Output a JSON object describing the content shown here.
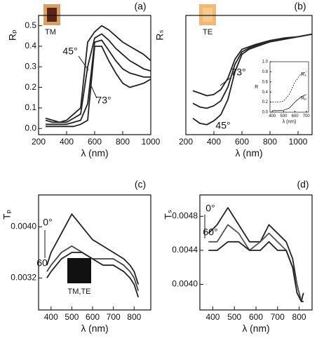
{
  "chart_data": [
    {
      "type": "line",
      "ylabel": "Rₚ",
      "xlabel": "λ (nm)",
      "annotations": [
        "(a)",
        "TM",
        "45°",
        "73°"
      ],
      "xlim": [
        200,
        1000
      ],
      "xticks": [
        200,
        400,
        600,
        800,
        1000
      ],
      "ylim": [
        -0.03,
        0.55
      ],
      "yticks": [
        {
          "value": 0,
          "label": "0.0"
        },
        0.1,
        0.2,
        0.3,
        0.4,
        0.5
      ],
      "x": [
        250,
        300,
        350,
        400,
        450,
        500,
        550,
        600,
        650,
        700,
        750,
        800,
        850,
        900,
        950,
        1000
      ],
      "series": [
        {
          "color": "#222222",
          "values": [
            0.05,
            0.04,
            0.03,
            0.04,
            0.07,
            0.1,
            0.42,
            0.47,
            0.5,
            0.48,
            0.45,
            0.42,
            0.4,
            0.38,
            0.36,
            0.33
          ]
        },
        {
          "color": "#222222",
          "values": [
            0.04,
            0.03,
            0.03,
            0.03,
            0.05,
            0.07,
            0.3,
            0.44,
            0.46,
            0.43,
            0.39,
            0.36,
            0.33,
            0.31,
            0.29,
            0.28
          ]
        },
        {
          "color": "#222222",
          "values": [
            0.02,
            0.02,
            0.02,
            0.02,
            0.03,
            0.04,
            0.12,
            0.42,
            0.43,
            0.38,
            0.33,
            0.29,
            0.27,
            0.26,
            0.25,
            0.25
          ]
        },
        {
          "color": "#222222",
          "values": [
            0.01,
            0.01,
            0.01,
            0.01,
            0.01,
            0.02,
            0.04,
            0.4,
            0.4,
            0.33,
            0.27,
            0.22,
            0.2,
            0.21,
            0.22,
            0.24
          ]
        }
      ]
    },
    {
      "type": "line",
      "ylabel": "Rₛ",
      "xlabel": "λ (nm)",
      "annotations": [
        "(b)",
        "TE",
        "73°",
        "45°"
      ],
      "xlim": [
        200,
        1100
      ],
      "xticks": [
        200,
        400,
        600,
        800,
        1000
      ],
      "ylim": [
        0,
        0.95
      ],
      "x": [
        250,
        300,
        350,
        400,
        450,
        500,
        550,
        600,
        650,
        700,
        800,
        900,
        1000,
        1100
      ],
      "series": [
        {
          "color": "#222222",
          "values": [
            0.35,
            0.33,
            0.31,
            0.32,
            0.36,
            0.45,
            0.6,
            0.68,
            0.7,
            0.72,
            0.75,
            0.77,
            0.78,
            0.8
          ]
        },
        {
          "color": "#222222",
          "values": [
            0.25,
            0.22,
            0.21,
            0.23,
            0.27,
            0.38,
            0.56,
            0.66,
            0.69,
            0.71,
            0.74,
            0.76,
            0.78,
            0.8
          ]
        },
        {
          "color": "#222222",
          "values": [
            0.13,
            0.09,
            0.08,
            0.11,
            0.16,
            0.28,
            0.5,
            0.64,
            0.68,
            0.7,
            0.74,
            0.76,
            0.78,
            0.8
          ]
        }
      ]
    },
    {
      "type": "line",
      "ylabel": "R",
      "xlabel": "λ (nm)",
      "annotations": [
        "Rₛ",
        "Rₚ"
      ],
      "xlim": [
        380,
        720
      ],
      "xticks": [
        400,
        500,
        600,
        700
      ],
      "ylim": [
        0,
        1
      ],
      "yticks": [
        {
          "value": 0,
          "label": "0.0"
        },
        0.2,
        0.4,
        0.6,
        0.8,
        {
          "value": 1,
          "label": "1.0"
        }
      ],
      "x": [
        400,
        450,
        500,
        550,
        600,
        650,
        700
      ],
      "series": [
        {
          "color": "#222222",
          "style": "dashed",
          "values": [
            0.2,
            0.2,
            0.22,
            0.35,
            0.6,
            0.75,
            0.8
          ]
        },
        {
          "color": "#222222",
          "values": [
            0.03,
            0.03,
            0.04,
            0.08,
            0.2,
            0.3,
            0.35
          ]
        }
      ]
    },
    {
      "type": "line",
      "ylabel": "Tₚ",
      "xlabel": "λ (nm)",
      "annotations": [
        "(c)",
        "0°",
        "60",
        "TM,TE"
      ],
      "xlim": [
        340,
        880
      ],
      "xticks": [
        400,
        500,
        600,
        700,
        800
      ],
      "ylim": [
        0.0027,
        0.0045
      ],
      "yticks": [
        0.0032,
        {
          "value": 0.004,
          "label": "0.0040"
        }
      ],
      "x": [
        380,
        400,
        450,
        500,
        550,
        600,
        650,
        700,
        750,
        780,
        800,
        820
      ],
      "series": [
        {
          "color": "#222222",
          "values": [
            0.0034,
            0.0036,
            0.0039,
            0.0042,
            0.004,
            0.0038,
            0.0037,
            0.0036,
            0.0035,
            0.0034,
            0.0033,
            0.0031
          ]
        },
        {
          "color": "#444444",
          "values": [
            0.0033,
            0.0034,
            0.0036,
            0.0037,
            0.0036,
            0.0035,
            0.0035,
            0.0035,
            0.0034,
            0.0033,
            0.0032,
            0.003
          ]
        },
        {
          "color": "#222222",
          "values": [
            0.0032,
            0.0033,
            0.0035,
            0.0036,
            0.0036,
            0.0035,
            0.0034,
            0.0034,
            0.0033,
            0.0032,
            0.0031,
            0.0029
          ]
        }
      ]
    },
    {
      "type": "line",
      "ylabel": "Tₛ",
      "xlabel": "λ (nm)",
      "annotations": [
        "(d)",
        "0°",
        "60°"
      ],
      "xlim": [
        340,
        860
      ],
      "xticks": [
        400,
        500,
        600,
        700,
        800
      ],
      "ylim": [
        0.0037,
        0.00505
      ],
      "yticks": [
        {
          "value": 0.004,
          "label": "0.0040"
        },
        0.0044,
        0.0048
      ],
      "x": [
        380,
        420,
        470,
        520,
        570,
        620,
        660,
        700,
        740,
        770,
        790,
        810,
        820
      ],
      "series": [
        {
          "color": "#222222",
          "values": [
            0.0046,
            0.0047,
            0.0049,
            0.0047,
            0.0045,
            0.0045,
            0.0047,
            0.0046,
            0.0045,
            0.0043,
            0.004,
            0.0038,
            0.0039
          ]
        },
        {
          "color": "#555555",
          "values": [
            0.0045,
            0.0045,
            0.0047,
            0.0046,
            0.0044,
            0.0045,
            0.0046,
            0.0045,
            0.0044,
            0.0042,
            0.004,
            0.0038,
            0.0038
          ]
        },
        {
          "color": "#222222",
          "values": [
            0.0044,
            0.0044,
            0.0045,
            0.0045,
            0.0044,
            0.0044,
            0.0045,
            0.0044,
            0.0044,
            0.0042,
            0.0039,
            0.0038,
            0.0038
          ]
        }
      ]
    }
  ]
}
